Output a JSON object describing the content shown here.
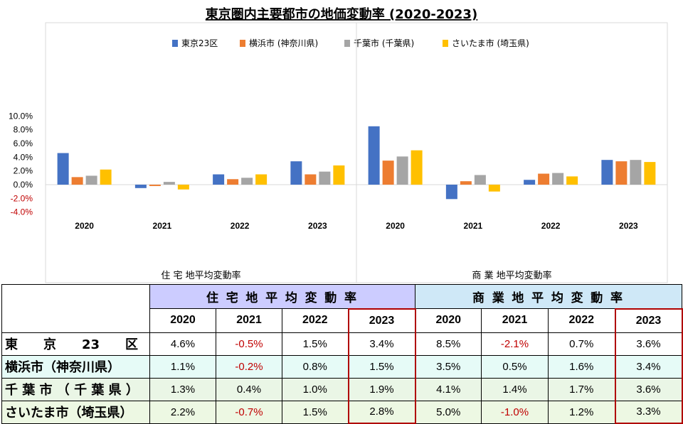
{
  "chart_data": {
    "type": "bar",
    "title": "東京圏内主要都市の地価変動率 (2020-2023)",
    "groups": [
      "住宅地平均変動率",
      "商業地平均変動率"
    ],
    "groups_spaced": [
      "住 宅 地平均変動率",
      "商 業 地平均変動率"
    ],
    "years": [
      "2020",
      "2021",
      "2022",
      "2023"
    ],
    "ylim": [
      -4.0,
      10.0
    ],
    "yticks": [
      "10.0%",
      "8.0%",
      "6.0%",
      "4.0%",
      "2.0%",
      "0.0%",
      "-2.0%",
      "-4.0%"
    ],
    "ytick_values": [
      10,
      8,
      6,
      4,
      2,
      0,
      -2,
      -4
    ],
    "legend_position": "top",
    "series": [
      {
        "name": "東京23区",
        "color": "#4472c4",
        "residential": [
          4.6,
          -0.5,
          1.5,
          3.4
        ],
        "commercial": [
          8.5,
          -2.1,
          0.7,
          3.6
        ]
      },
      {
        "name": "横浜市 (神奈川県)",
        "color": "#ed7d31",
        "residential": [
          1.1,
          -0.2,
          0.8,
          1.5
        ],
        "commercial": [
          3.5,
          0.5,
          1.6,
          3.4
        ]
      },
      {
        "name": "千葉市 (千葉県)",
        "color": "#a5a5a5",
        "residential": [
          1.3,
          0.4,
          1.0,
          1.9
        ],
        "commercial": [
          4.1,
          1.4,
          1.7,
          3.6
        ]
      },
      {
        "name": "さいたま市 (埼玉県)",
        "color": "#ffc000",
        "residential": [
          2.2,
          -0.7,
          1.5,
          2.8
        ],
        "commercial": [
          5.0,
          -1.0,
          1.2,
          3.3
        ]
      }
    ]
  },
  "table": {
    "group_headers": [
      "住 宅 地 平 均 変 動 率",
      "商 業 地 平 均 変 動 率"
    ],
    "years": [
      "2020",
      "2021",
      "2022",
      "2023",
      "2020",
      "2021",
      "2022",
      "2023"
    ],
    "rows": [
      {
        "name": "東　　京　　23　　区",
        "cells": [
          "4.6%",
          "-0.5%",
          "1.5%",
          "3.4%",
          "8.5%",
          "-2.1%",
          "0.7%",
          "3.6%"
        ]
      },
      {
        "name": "横浜市（神奈川県）",
        "cells": [
          "1.1%",
          "-0.2%",
          "0.8%",
          "1.5%",
          "3.5%",
          "0.5%",
          "1.6%",
          "3.4%"
        ]
      },
      {
        "name": "千 葉 市 （ 千 葉 県 ）",
        "cells": [
          "1.3%",
          "0.4%",
          "1.0%",
          "1.9%",
          "4.1%",
          "1.4%",
          "1.7%",
          "3.6%"
        ]
      },
      {
        "name": "さいたま市（埼玉県）",
        "cells": [
          "2.2%",
          "-0.7%",
          "1.5%",
          "2.8%",
          "5.0%",
          "-1.0%",
          "1.2%",
          "3.3%"
        ]
      }
    ]
  }
}
